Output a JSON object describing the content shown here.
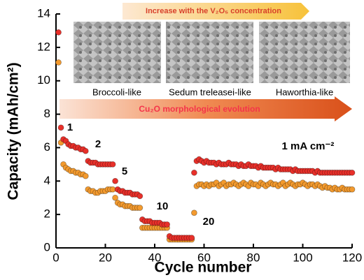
{
  "chart_data": {
    "type": "scatter",
    "xlabel": "Cycle number",
    "ylabel": "Capacity (mAh/cm²)",
    "xlim": [
      0,
      120
    ],
    "xticks": [
      0,
      20,
      40,
      60,
      80,
      100,
      120
    ],
    "ylim": [
      0,
      14
    ],
    "yticks": [
      0,
      2,
      4,
      6,
      8,
      10,
      12,
      14
    ],
    "annotations": [
      "1",
      "2",
      "5",
      "10",
      "20",
      "1 mA cm⁻²"
    ],
    "concentration_banner": "Increase with the V₂O₅ concentration",
    "morphology_labels": [
      "Broccoli-like",
      "Sedum treleasei-like",
      "Haworthia-like"
    ],
    "evolution_banner": "Cu₂O morphological evolution",
    "x": [
      1,
      2,
      3,
      4,
      5,
      6,
      7,
      8,
      9,
      10,
      11,
      12,
      13,
      14,
      15,
      16,
      17,
      18,
      19,
      20,
      21,
      22,
      23,
      24,
      25,
      26,
      27,
      28,
      29,
      30,
      31,
      32,
      33,
      34,
      35,
      36,
      37,
      38,
      39,
      40,
      41,
      42,
      43,
      44,
      45,
      46,
      47,
      48,
      49,
      50,
      51,
      52,
      53,
      54,
      55,
      56,
      57,
      58,
      59,
      60,
      61,
      62,
      63,
      64,
      65,
      66,
      67,
      68,
      69,
      70,
      71,
      72,
      73,
      74,
      75,
      76,
      77,
      78,
      79,
      80,
      81,
      82,
      83,
      84,
      85,
      86,
      87,
      88,
      89,
      90,
      91,
      92,
      93,
      94,
      95,
      96,
      97,
      98,
      99,
      100,
      101,
      102,
      103,
      104,
      105,
      106,
      107,
      108,
      109,
      110,
      111,
      112,
      113,
      114,
      115,
      116,
      117,
      118,
      119,
      120
    ],
    "series": [
      {
        "color": "#f39a2e",
        "values": [
          11.1,
          6.3,
          5.0,
          4.8,
          4.7,
          4.6,
          4.6,
          4.5,
          4.5,
          4.4,
          4.4,
          4.3,
          3.5,
          3.4,
          3.4,
          3.3,
          3.3,
          3.4,
          3.4,
          3.4,
          3.5,
          3.5,
          3.5,
          3.0,
          2.7,
          2.6,
          2.6,
          2.5,
          2.5,
          2.5,
          2.4,
          2.4,
          2.4,
          2.4,
          1.2,
          1.2,
          1.2,
          1.2,
          1.2,
          1.2,
          1.2,
          1.2,
          1.2,
          1.2,
          1.2,
          0.5,
          0.5,
          0.5,
          0.5,
          0.5,
          0.5,
          0.5,
          0.5,
          0.5,
          0.5,
          2.1,
          3.7,
          3.8,
          3.8,
          3.7,
          3.8,
          3.7,
          3.8,
          3.8,
          3.9,
          3.7,
          3.8,
          3.9,
          3.7,
          3.8,
          3.8,
          3.9,
          3.8,
          3.7,
          3.8,
          3.9,
          3.8,
          3.7,
          3.9,
          3.8,
          3.8,
          3.7,
          3.9,
          3.8,
          3.7,
          3.8,
          3.9,
          3.8,
          3.8,
          3.7,
          3.8,
          3.9,
          3.7,
          3.8,
          3.9,
          3.8,
          3.7,
          3.8,
          3.8,
          3.9,
          3.8,
          3.7,
          3.8,
          3.8,
          3.7,
          3.8,
          3.7,
          3.6,
          3.7,
          3.6,
          3.6,
          3.5,
          3.6,
          3.5,
          3.5,
          3.6,
          3.5,
          3.5,
          3.5,
          3.5
        ]
      },
      {
        "color": "#e8302a",
        "values": [
          12.9,
          7.2,
          6.5,
          6.4,
          6.2,
          6.1,
          6.1,
          6.0,
          6.0,
          5.9,
          5.9,
          5.8,
          5.2,
          5.1,
          5.1,
          5.1,
          5.0,
          5.0,
          5.0,
          5.0,
          5.0,
          5.0,
          5.0,
          4.0,
          3.5,
          3.4,
          3.4,
          3.3,
          3.3,
          3.3,
          3.2,
          3.2,
          3.2,
          3.1,
          1.7,
          1.6,
          1.6,
          1.6,
          1.5,
          1.5,
          1.5,
          1.5,
          1.4,
          1.4,
          1.4,
          0.7,
          0.6,
          0.6,
          0.6,
          0.6,
          0.6,
          0.6,
          0.6,
          0.6,
          0.6,
          4.5,
          5.2,
          5.3,
          5.2,
          5.1,
          5.2,
          5.1,
          5.1,
          5.1,
          5.0,
          5.1,
          5.0,
          5.0,
          5.0,
          5.1,
          5.0,
          5.0,
          5.0,
          4.9,
          5.0,
          4.9,
          4.9,
          5.0,
          4.9,
          4.9,
          4.9,
          4.8,
          4.9,
          4.8,
          4.8,
          4.8,
          4.8,
          4.8,
          4.7,
          4.8,
          4.7,
          4.7,
          4.7,
          4.7,
          4.7,
          4.6,
          4.7,
          4.6,
          4.6,
          4.6,
          4.6,
          4.6,
          4.6,
          4.6,
          4.5,
          4.6,
          4.5,
          4.5,
          4.5,
          4.5,
          4.5,
          4.5,
          4.5,
          4.5,
          4.5,
          4.5,
          4.5,
          4.5,
          4.5,
          4.5
        ]
      }
    ]
  }
}
